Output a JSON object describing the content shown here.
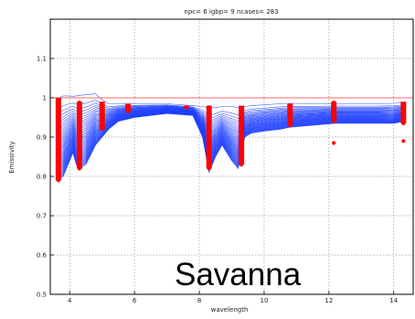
{
  "chart_data": {
    "type": "line",
    "title": "npc= 6   igbp= 9   ncases=   283",
    "annotation": "Savanna",
    "xlabel": "wavelength",
    "ylabel": "Emissivity",
    "xlim": [
      3.4,
      14.6
    ],
    "ylim": [
      0.5,
      1.2
    ],
    "xticks": [
      4,
      6,
      8,
      10,
      12,
      14
    ],
    "yticks": [
      0.5,
      0.6,
      0.7,
      0.8,
      0.9,
      1,
      1.1
    ],
    "ytick_labels": [
      "0.5",
      "0.6",
      "0.7",
      "0.8",
      "0.9",
      "1",
      "1.1"
    ],
    "grid": true,
    "reference_line": {
      "y": 1.0,
      "color": "#ff6666"
    },
    "series_color": "#1f3fff",
    "marker_color": "#ff0000",
    "envelope": {
      "x": [
        3.6,
        3.65,
        3.8,
        4.0,
        4.1,
        4.2,
        4.3,
        4.5,
        4.8,
        5.0,
        5.2,
        5.5,
        6.0,
        7.0,
        7.8,
        8.1,
        8.3,
        8.5,
        8.7,
        9.0,
        9.2,
        9.4,
        9.6,
        10.0,
        10.5,
        10.8,
        11.5,
        12.2,
        13.0,
        13.5,
        14.0,
        14.3
      ],
      "upper": [
        0.99,
        0.999,
        1.005,
        1.005,
        1.004,
        1.005,
        1.006,
        1.008,
        1.01,
        0.995,
        0.985,
        0.985,
        0.985,
        0.985,
        0.98,
        0.978,
        0.975,
        0.975,
        0.978,
        0.978,
        0.975,
        0.978,
        0.98,
        0.982,
        0.985,
        0.986,
        0.985,
        0.985,
        0.985,
        0.985,
        0.986,
        0.988
      ],
      "lower": [
        0.83,
        0.79,
        0.8,
        0.84,
        0.86,
        0.83,
        0.82,
        0.83,
        0.88,
        0.9,
        0.92,
        0.94,
        0.95,
        0.96,
        0.955,
        0.9,
        0.81,
        0.85,
        0.88,
        0.84,
        0.82,
        0.9,
        0.91,
        0.915,
        0.92,
        0.925,
        0.93,
        0.935,
        0.935,
        0.935,
        0.935,
        0.94
      ]
    },
    "sample_columns": [
      {
        "x": 3.65,
        "ymin": 0.79,
        "ymax": 1.0
      },
      {
        "x": 4.3,
        "ymin": 0.82,
        "ymax": 0.99
      },
      {
        "x": 5.0,
        "ymin": 0.92,
        "ymax": 0.99
      },
      {
        "x": 5.8,
        "ymin": 0.965,
        "ymax": 0.985
      },
      {
        "x": 7.6,
        "ymin": 0.975,
        "ymax": 0.98
      },
      {
        "x": 8.3,
        "ymin": 0.82,
        "ymax": 0.98
      },
      {
        "x": 9.3,
        "ymin": 0.83,
        "ymax": 0.98
      },
      {
        "x": 10.8,
        "ymin": 0.93,
        "ymax": 0.985
      },
      {
        "x": 12.15,
        "ymin": 0.94,
        "ymax": 0.99
      },
      {
        "x": 14.3,
        "ymin": 0.935,
        "ymax": 0.99
      }
    ],
    "outliers": [
      {
        "x": 12.15,
        "y": 0.885
      },
      {
        "x": 14.3,
        "y": 0.89
      }
    ]
  }
}
